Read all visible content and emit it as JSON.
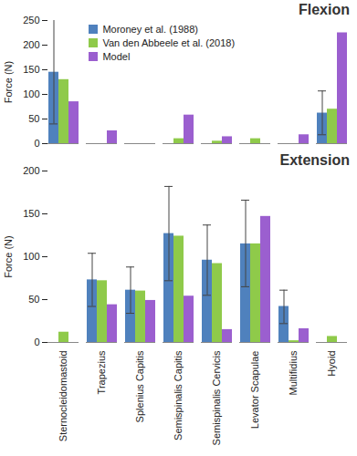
{
  "chart_data": [
    {
      "type": "bar",
      "title": "Flexion",
      "y_label": "Force (N)",
      "categories": [
        "Sternocleidomastoid",
        "Trapezius",
        "Splenius Capitis",
        "Semispinalis Capitis",
        "Semispinalis Cervicis",
        "Levator Scapulae",
        "Multifidius",
        "Hyoid"
      ],
      "series": [
        {
          "name": "Moroney et al. (1988)",
          "color": "#4f81bd",
          "values": [
            145,
            0,
            0,
            0,
            0,
            0,
            0,
            62
          ],
          "error_low": [
            40,
            null,
            null,
            null,
            null,
            null,
            null,
            18
          ],
          "error_high": [
            252,
            null,
            null,
            null,
            null,
            null,
            null,
            107
          ]
        },
        {
          "name": "Van den Abbeele et al. (2018)",
          "color": "#8fca4a",
          "values": [
            130,
            0,
            0,
            10,
            5,
            10,
            0,
            70
          ]
        },
        {
          "name": "Model",
          "color": "#9b5fcf",
          "values": [
            85,
            26,
            0,
            58,
            14,
            0,
            18,
            225
          ]
        }
      ],
      "ylim": [
        0,
        250
      ],
      "yticks": [
        0,
        50,
        100,
        150,
        200,
        250
      ],
      "legend": "top",
      "tick_labels": "y"
    },
    {
      "type": "bar",
      "title": "Extension",
      "y_label": "Force (N)",
      "categories": [
        "Sternocleidomastoid",
        "Trapezius",
        "Splenius Capitis",
        "Semispinalis Capitis",
        "Semispinalis Cervicis",
        "Levator Scapulae",
        "Multifidius",
        "Hyoid"
      ],
      "series": [
        {
          "name": "Moroney et al. (1988)",
          "color": "#4f81bd",
          "values": [
            0,
            73,
            61,
            127,
            96,
            115,
            42,
            0
          ],
          "error_low": [
            null,
            42,
            34,
            72,
            55,
            65,
            22,
            null
          ],
          "error_high": [
            null,
            104,
            88,
            182,
            137,
            166,
            61,
            null
          ]
        },
        {
          "name": "Van den Abbeele et al. (2018)",
          "color": "#8fca4a",
          "values": [
            12,
            72,
            60,
            124,
            92,
            115,
            2,
            7
          ]
        },
        {
          "name": "Model",
          "color": "#9b5fcf",
          "values": [
            0,
            44,
            49,
            54,
            15,
            147,
            16,
            0
          ]
        }
      ],
      "ylim": [
        0,
        200
      ],
      "yticks": [
        0,
        50,
        100,
        150,
        200
      ]
    }
  ]
}
